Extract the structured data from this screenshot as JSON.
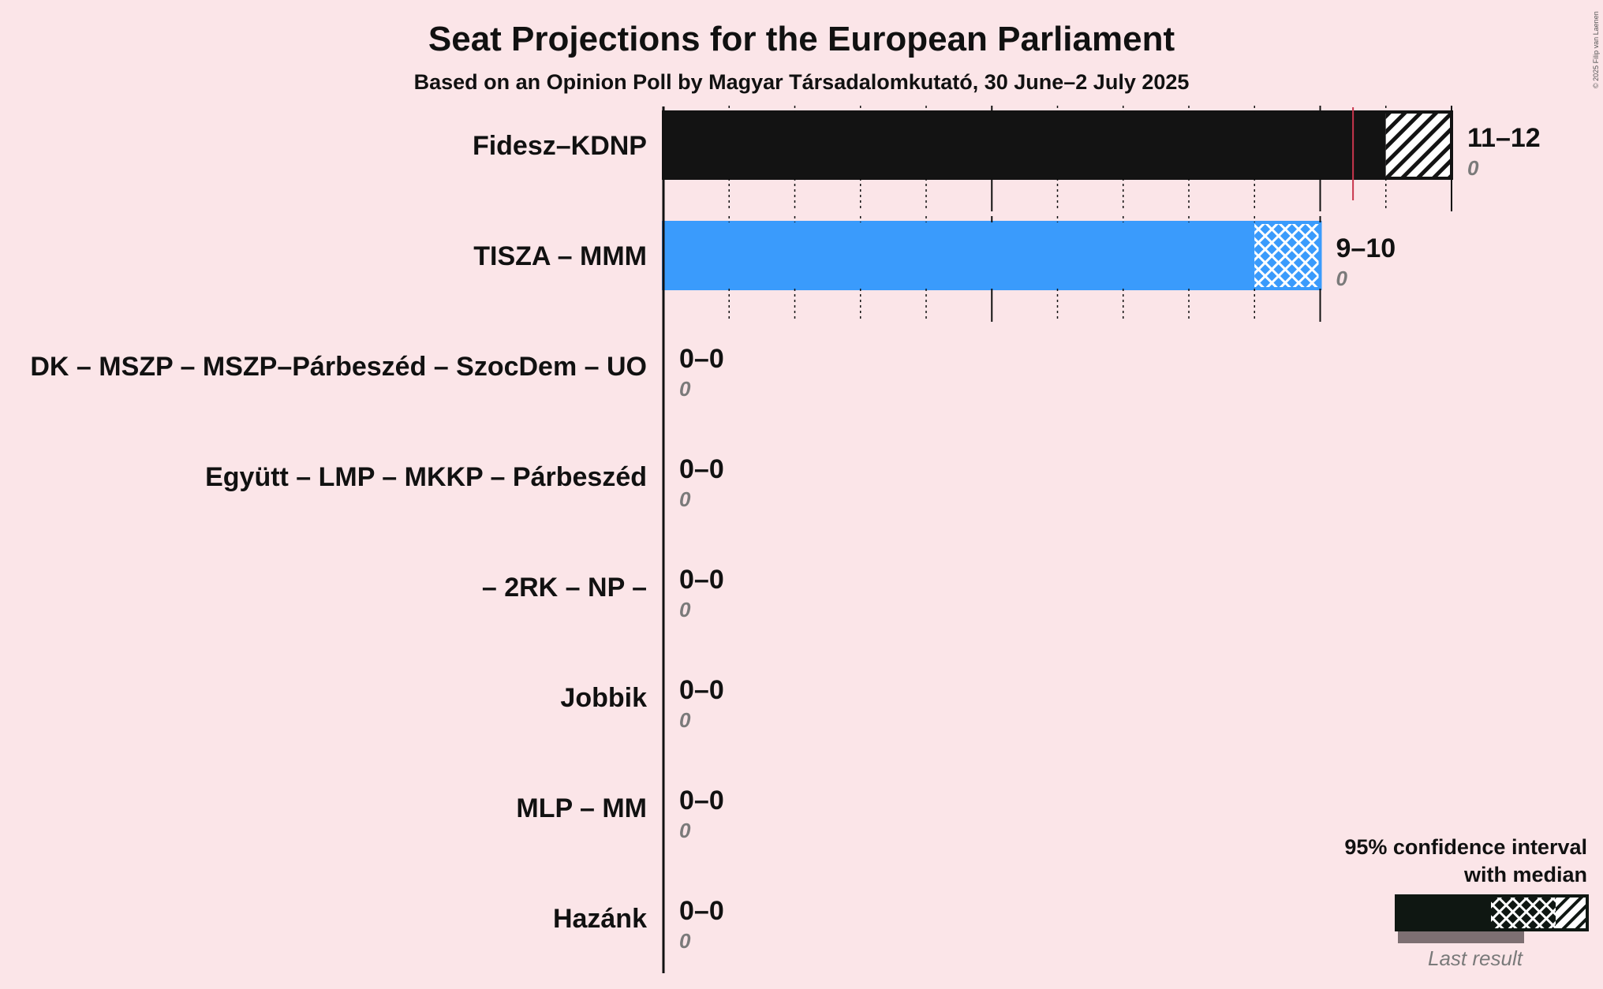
{
  "chart_data": {
    "type": "bar",
    "title": "Seat Projections for the European Parliament",
    "subtitle": "Based on an Opinion Poll by Magyar Társadalomkutató, 30 June–2 July 2025",
    "copyright": "© 2025 Filip van Laenen",
    "xlim": [
      0,
      12
    ],
    "majority_line": 10.5,
    "parties": [
      {
        "name": "Fidesz–KDNP",
        "low": 11,
        "median": 11,
        "high": 12,
        "range_label": "11–12",
        "last_result": 0,
        "last_label": "0",
        "color": "#131313"
      },
      {
        "name": "TISZA – MMM",
        "low": 9,
        "median": 9,
        "high": 10,
        "range_label": "9–10",
        "last_result": 0,
        "last_label": "0",
        "color": "#3a9bfc"
      },
      {
        "name": "DK – MSZP – MSZP–Párbeszéd – SzocDem – UO",
        "low": 0,
        "median": 0,
        "high": 0,
        "range_label": "0–0",
        "last_result": 0,
        "last_label": "0",
        "color": "#1e6fd0"
      },
      {
        "name": "Együtt – LMP – MKKP – Párbeszéd",
        "low": 0,
        "median": 0,
        "high": 0,
        "range_label": "0–0",
        "last_result": 0,
        "last_label": "0",
        "color": "#3aaa35"
      },
      {
        "name": "– 2RK – NP –",
        "low": 0,
        "median": 0,
        "high": 0,
        "range_label": "0–0",
        "last_result": 0,
        "last_label": "0",
        "color": "#888888"
      },
      {
        "name": "Jobbik",
        "low": 0,
        "median": 0,
        "high": 0,
        "range_label": "0–0",
        "last_result": 0,
        "last_label": "0",
        "color": "#2e8b57"
      },
      {
        "name": "MLP – MM",
        "low": 0,
        "median": 0,
        "high": 0,
        "range_label": "0–0",
        "last_result": 0,
        "last_label": "0",
        "color": "#999999"
      },
      {
        "name": "Hazánk",
        "low": 0,
        "median": 0,
        "high": 0,
        "range_label": "0–0",
        "last_result": 0,
        "last_label": "0",
        "color": "#556b2f"
      }
    ],
    "legend": {
      "line1": "95% confidence interval",
      "line2": "with median",
      "last_result": "Last result"
    }
  },
  "colors": {
    "background": "#fbe5e8",
    "majority_line": "#c8364d",
    "last_result_bar": "#7d6f72"
  }
}
